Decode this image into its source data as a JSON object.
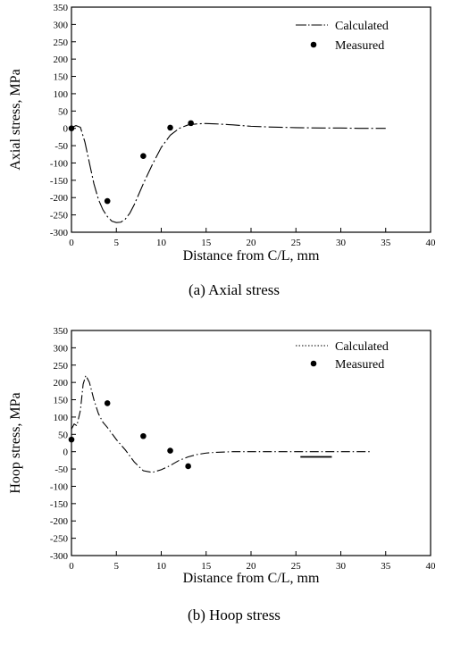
{
  "chart_data": [
    {
      "type": "line",
      "title": "",
      "caption": "(a) Axial stress",
      "xlabel": "Distance from C/L, mm",
      "ylabel": "Axial stress, MPa",
      "xlim": [
        0,
        40
      ],
      "ylim": [
        -300,
        350
      ],
      "xticks": [
        0,
        5,
        10,
        15,
        20,
        25,
        30,
        35,
        40
      ],
      "yticks": [
        350,
        300,
        250,
        200,
        150,
        100,
        50,
        0,
        -50,
        -100,
        -150,
        -200,
        -250,
        -300
      ],
      "grid": false,
      "legend_position": "top-right",
      "series": [
        {
          "name": "Calculated",
          "kind": "line",
          "x": [
            0,
            0.5,
            1.0,
            1.5,
            2.0,
            2.5,
            3.0,
            3.5,
            4.0,
            4.5,
            5.0,
            5.5,
            6.0,
            6.5,
            7.0,
            8.0,
            9.0,
            10.0,
            11.0,
            12.0,
            13.0,
            14.0,
            15.0,
            16.0,
            18.0,
            20.0,
            22.0,
            25.0,
            28.0,
            30.0,
            32.0,
            35.0
          ],
          "y": [
            2,
            8,
            3,
            -40,
            -100,
            -160,
            -205,
            -235,
            -255,
            -268,
            -272,
            -271,
            -262,
            -245,
            -220,
            -160,
            -105,
            -55,
            -20,
            0,
            10,
            13,
            14,
            13,
            10,
            6,
            4,
            2,
            1,
            1,
            0,
            0
          ]
        },
        {
          "name": "Measured",
          "kind": "scatter",
          "x": [
            0,
            4,
            8,
            11,
            13.3
          ],
          "y": [
            0,
            -210,
            -80,
            2,
            15
          ]
        }
      ]
    },
    {
      "type": "line",
      "title": "",
      "caption": "(b) Hoop stress",
      "xlabel": "Distance from C/L, mm",
      "ylabel": "Hoop stress, MPa",
      "xlim": [
        0,
        40
      ],
      "ylim": [
        -300,
        350
      ],
      "xticks": [
        0,
        5,
        10,
        15,
        20,
        25,
        30,
        35,
        40
      ],
      "yticks": [
        350,
        300,
        250,
        200,
        150,
        100,
        50,
        0,
        -50,
        -100,
        -150,
        -200,
        -250,
        -300
      ],
      "grid": false,
      "legend_position": "top-right",
      "series": [
        {
          "name": "Calculated",
          "kind": "line",
          "x": [
            0,
            0.3,
            0.6,
            1.0,
            1.3,
            1.6,
            2.0,
            2.5,
            3.0,
            3.5,
            4.0,
            5.0,
            6.0,
            7.0,
            8.0,
            9.0,
            10.0,
            11.0,
            12.0,
            13.0,
            14.0,
            15.0,
            16.0,
            18.0,
            20.0,
            25.0,
            30.0,
            33.5
          ],
          "y": [
            65,
            80,
            75,
            120,
            195,
            220,
            200,
            150,
            110,
            85,
            70,
            35,
            5,
            -30,
            -55,
            -60,
            -52,
            -40,
            -25,
            -15,
            -8,
            -4,
            -2,
            0,
            0,
            0,
            0,
            0
          ]
        },
        {
          "name": "Measured",
          "kind": "scatter",
          "x": [
            0,
            4,
            8,
            11,
            13
          ],
          "y": [
            35,
            140,
            45,
            3,
            -42
          ]
        },
        {
          "name": "",
          "kind": "line",
          "x": [
            25.5,
            29
          ],
          "y": [
            -15,
            -15
          ]
        }
      ]
    }
  ]
}
